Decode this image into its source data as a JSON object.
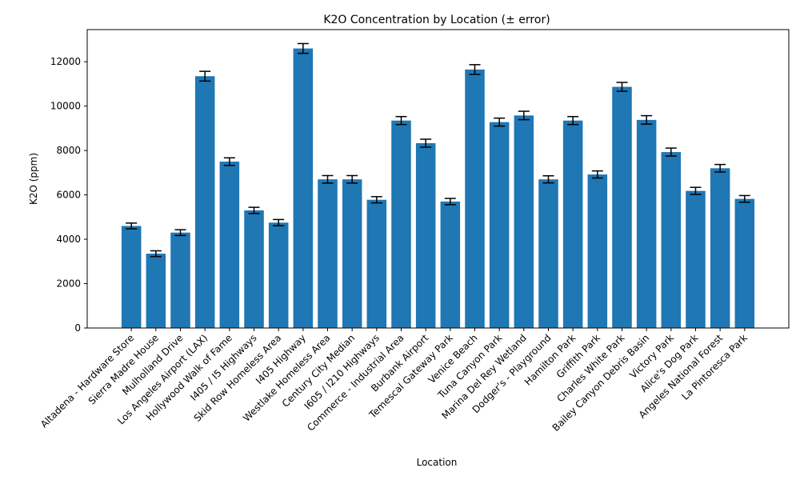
{
  "chart_data": {
    "type": "bar",
    "title": "K2O Concentration by Location (± error)",
    "xlabel": "Location",
    "ylabel": "K2O (ppm)",
    "ylim": [
      0,
      13450
    ],
    "yticks": [
      0,
      2000,
      4000,
      6000,
      8000,
      10000,
      12000
    ],
    "grid": false,
    "bar_color": "#1f77b4",
    "errorbar_color": "#000000",
    "categories": [
      "Altadena - Hardware Store",
      "Sierra Madre House",
      "Mulholland Drive",
      "Los Angeles Airport (LAX)",
      "Hollywood Walk of Fame",
      "I405 / I5 Highways",
      "Skid Row Homeless Area",
      "I405 Highway",
      "Westlake Homeless Area",
      "Century City Median",
      "I605 / I210 Highways",
      "Commerce - Industrial Area",
      "Burbank Airport",
      "Temescal Gateway Park",
      "Venice Beach",
      "Tuna Canyon Park",
      "Marina Del Rey Wetland",
      "Dodger's - Playground",
      "Hamilton Park",
      "Griffith Park",
      "Charles White Park",
      "Bailey Canyon Debris Basin",
      "Victory Park",
      "Alice's Dog Park",
      "Angeles National Forest",
      "La Pintoresca Park"
    ],
    "values": [
      4600,
      3350,
      4300,
      11350,
      7500,
      5300,
      4750,
      12600,
      6700,
      6700,
      5780,
      9350,
      8330,
      5700,
      11650,
      9280,
      9580,
      6700,
      9350,
      6920,
      10870,
      9380,
      7930,
      6180,
      7200,
      5820
    ],
    "errors": [
      130,
      130,
      130,
      220,
      170,
      140,
      140,
      220,
      170,
      170,
      140,
      180,
      180,
      140,
      220,
      180,
      190,
      160,
      180,
      160,
      200,
      190,
      180,
      160,
      170,
      150
    ]
  }
}
